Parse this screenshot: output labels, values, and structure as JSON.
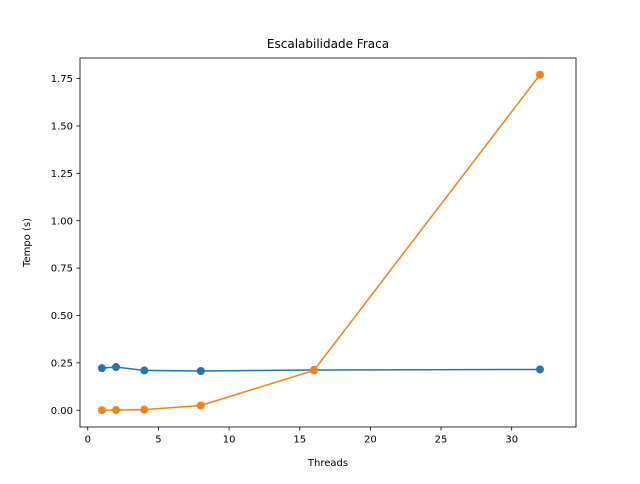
{
  "chart_data": {
    "type": "line",
    "title": "Escalabilidade Fraca",
    "xlabel": "Threads",
    "ylabel": "Tempo (s)",
    "x": [
      1,
      2,
      4,
      8,
      16,
      32
    ],
    "series": [
      {
        "values": [
          0.222,
          0.228,
          0.21,
          0.207,
          0.212,
          0.215
        ],
        "color": "#1f77b4",
        "marker": "circle"
      },
      {
        "values": [
          0.0,
          0.001,
          0.003,
          0.025,
          0.21,
          1.77
        ],
        "color": "#ff7f0e",
        "marker": "circle"
      }
    ],
    "xlim": [
      -0.55,
      34.55
    ],
    "ylim": [
      -0.0885,
      1.8585
    ],
    "xticks": [
      0,
      5,
      10,
      15,
      20,
      25,
      30
    ],
    "xtick_labels": [
      "0",
      "5",
      "10",
      "15",
      "20",
      "25",
      "30"
    ],
    "yticks": [
      0,
      0.25,
      0.5,
      0.75,
      1.0,
      1.25,
      1.5,
      1.75
    ],
    "ytick_labels": [
      "0.00",
      "0.25",
      "0.50",
      "0.75",
      "1.00",
      "1.25",
      "1.50",
      "1.75"
    ],
    "grid": false,
    "legend": false
  }
}
